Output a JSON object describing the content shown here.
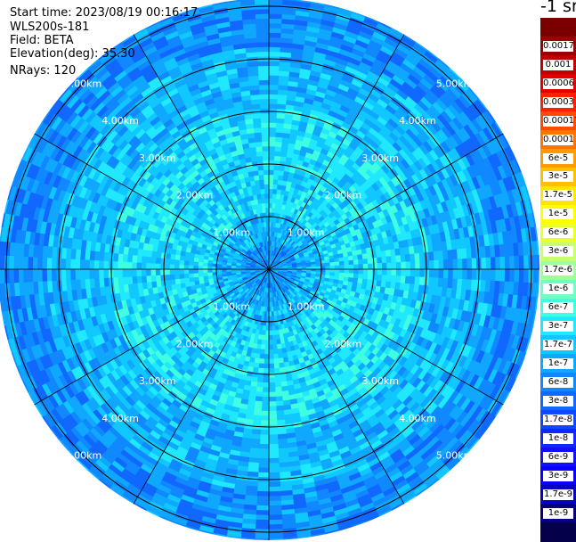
{
  "header": {
    "start_time": "Start time: 2023/08/19 00:16:17",
    "instrument": "WLS200s-181",
    "field": "Field: BETA",
    "elevation": "Elevation(deg): 35.30",
    "nrays": "NRays: 120"
  },
  "colorbar": {
    "title": "-1 sr",
    "colors": [
      "#7a0000",
      "#9c0000",
      "#c00000",
      "#e00000",
      "#ff2000",
      "#ff4a00",
      "#ff7400",
      "#ff9a00",
      "#ffc000",
      "#ffe600",
      "#ffff00",
      "#e8ff30",
      "#c8ff70",
      "#a0ff9a",
      "#70ffc0",
      "#40ffe0",
      "#20e8ff",
      "#10c8ff",
      "#10a8ff",
      "#1088ff",
      "#1068ff",
      "#1048ff",
      "#1028ff",
      "#1010ff",
      "#0a00ff",
      "#0800c0",
      "#060080",
      "#04004a"
    ],
    "labels": [
      "0.0017",
      "0.001",
      "0.0006",
      "0.0003",
      "0.00017",
      "0.0001",
      "6e-5",
      "3e-5",
      "1.7e-5",
      "1e-5",
      "6e-6",
      "3e-6",
      "1.7e-6",
      "1e-6",
      "6e-7",
      "3e-7",
      "1.7e-7",
      "1e-7",
      "6e-8",
      "3e-8",
      "1.7e-8",
      "1e-8",
      "6e-9",
      "3e-9",
      "1.7e-9",
      "1e-9"
    ]
  },
  "chart_data": {
    "type": "heatmap",
    "projection": "polar PPI",
    "field": "BETA",
    "units": "-1 sr",
    "rays": 120,
    "range_rings_km": [
      1,
      2,
      3,
      4,
      5
    ],
    "ring_labels": [
      "1.00km",
      "2.00km",
      "3.00km",
      "4.00km",
      "5.00km"
    ],
    "max_range_km": 5.0,
    "spokes_deg": [
      0,
      30,
      60,
      90,
      120,
      150,
      180,
      210,
      240,
      270,
      300,
      330
    ],
    "color_scale": "log",
    "value_range": [
      1e-09,
      0.0017
    ],
    "typical_values": {
      "inner_ring": "1e-7 to 3e-7",
      "middle_ring": "3e-8 to 1e-7",
      "outer_ring": "1e-8 to 3e-8"
    }
  }
}
